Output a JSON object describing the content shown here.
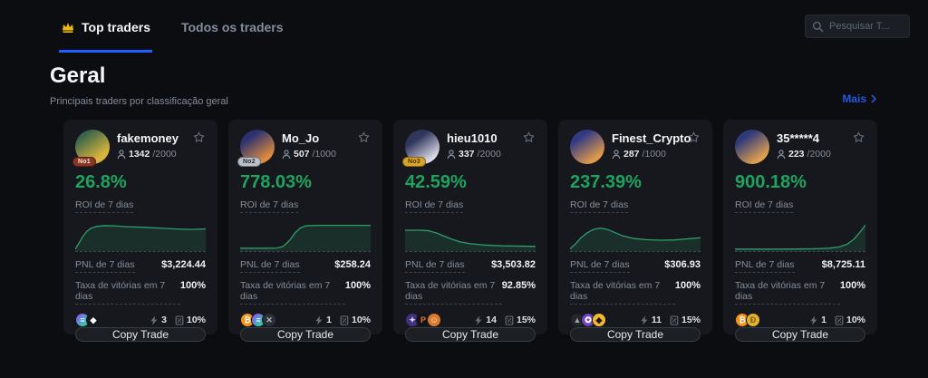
{
  "header": {
    "tabs": [
      {
        "label": "Top traders",
        "active": true
      },
      {
        "label": "Todos os traders",
        "active": false
      }
    ],
    "search_placeholder": "Pesquisar T..."
  },
  "section": {
    "title": "Geral",
    "subtitle": "Principais traders por classificação geral",
    "more_label": "Mais"
  },
  "labels": {
    "roi": "ROI de 7 dias",
    "pnl": "PNL de 7 dias",
    "win_rate": "Taxa de vitórias em 7 dias",
    "copy_button": "Copy Trade"
  },
  "colors": {
    "accent_blue": "#1f5eff",
    "link_blue": "#2458e5",
    "roi_green": "#1fa35f",
    "chart_line": "#2f9d6a",
    "crown_gold": "#f0b90b",
    "card_bg": "#16181d",
    "page_bg": "#0b0d10"
  },
  "traders": [
    {
      "name": "fakemoney",
      "followers": "1342",
      "capacity": "/2000",
      "rank_badge": "No1",
      "badge_bg": "#8a3526",
      "badge_fg": "#f5e7d4",
      "avatar_bg": "linear-gradient(145deg,#38654a 20%,#d8b33c 75%)",
      "roi": "26.8%",
      "pnl": "$3,224.44",
      "win_rate": "100%",
      "copiers": "3",
      "profit_share": "10%",
      "coins": [
        {
          "name": "sol-coin",
          "bg": "linear-gradient(135deg,#9945ff,#14f195)",
          "fg": "#ffffff",
          "glyph": "≡"
        },
        {
          "name": "eth-coin",
          "bg": "#17181b",
          "fg": "#ffffff",
          "glyph": "◆"
        }
      ]
    },
    {
      "name": "Mo_Jo",
      "followers": "507",
      "capacity": "/1000",
      "rank_badge": "No2",
      "badge_bg": "#b9c0c9",
      "badge_fg": "#2b2f36",
      "avatar_bg": "linear-gradient(145deg,#2c3270 25%,#e08b3d 80%)",
      "roi": "778.03%",
      "pnl": "$258.24",
      "win_rate": "100%",
      "copiers": "1",
      "profit_share": "10%",
      "coins": [
        {
          "name": "btc-coin",
          "bg": "#f7931a",
          "fg": "#ffffff",
          "glyph": "₿"
        },
        {
          "name": "sol-coin",
          "bg": "linear-gradient(135deg,#9945ff,#14f195)",
          "fg": "#ffffff",
          "glyph": "≡"
        },
        {
          "name": "x-token-coin",
          "bg": "#2b2f36",
          "fg": "#aeb6bf",
          "glyph": "✕"
        }
      ]
    },
    {
      "name": "hieu1010",
      "followers": "337",
      "capacity": "/2000",
      "rank_badge": "No3",
      "badge_bg": "#d9a62a",
      "badge_fg": "#4a3000",
      "avatar_bg": "linear-gradient(145deg,#30365c 30%,#e8e8f0 85%)",
      "roi": "42.59%",
      "pnl": "$3,503.82",
      "win_rate": "92.85%",
      "copiers": "14",
      "profit_share": "15%",
      "coins": [
        {
          "name": "purple-token-coin",
          "bg": "#43307e",
          "fg": "#d9d2f2",
          "glyph": "✦"
        },
        {
          "name": "pepe-token-coin",
          "bg": "#121316",
          "fg": "#e0762c",
          "glyph": "P"
        },
        {
          "name": "trump-token-coin",
          "bg": "#d97b2f",
          "fg": "#ffe9c9",
          "glyph": "☺"
        }
      ]
    },
    {
      "name": "Finest_Crypto",
      "followers": "287",
      "capacity": "/1000",
      "rank_badge": null,
      "badge_bg": null,
      "badge_fg": null,
      "avatar_bg": "linear-gradient(145deg,#323a85 25%,#e09a4a 80%)",
      "roi": "237.39%",
      "pnl": "$306.93",
      "win_rate": "100%",
      "copiers": "11",
      "profit_share": "15%",
      "coins": [
        {
          "name": "dark-token-coin",
          "bg": "#23262d",
          "fg": "#9aa3ad",
          "glyph": "▲"
        },
        {
          "name": "purple-token-coin",
          "bg": "#6f42c1",
          "fg": "#ffffff",
          "glyph": "✪"
        },
        {
          "name": "bnb-coin",
          "bg": "#f3ba2f",
          "fg": "#1a1a1a",
          "glyph": "◆"
        }
      ]
    },
    {
      "name": "35*****4",
      "followers": "223",
      "capacity": "/2000",
      "rank_badge": null,
      "badge_bg": null,
      "badge_fg": null,
      "avatar_bg": "linear-gradient(145deg,#2f3a7a 25%,#e0a050 80%)",
      "roi": "900.18%",
      "pnl": "$8,725.11",
      "win_rate": "100%",
      "copiers": "1",
      "profit_share": "10%",
      "coins": [
        {
          "name": "btc-coin",
          "bg": "#f7931a",
          "fg": "#ffffff",
          "glyph": "₿"
        },
        {
          "name": "doge-coin",
          "bg": "#e1b22f",
          "fg": "#7a5a12",
          "glyph": "Ð"
        }
      ]
    }
  ],
  "chart_data": [
    {
      "type": "area",
      "name": "fakemoney ROI de 7 dias",
      "grid": false,
      "legend": false,
      "x_range": [
        0,
        100
      ],
      "y_range": [
        0,
        100
      ],
      "y_unit": "normalized ROI trend",
      "line_color": "#2f9d6a",
      "fill_color": "rgba(47,157,106,0.18)",
      "baseline": "dashed",
      "points": [
        [
          0,
          2
        ],
        [
          3,
          25
        ],
        [
          6,
          50
        ],
        [
          9,
          68
        ],
        [
          12,
          79
        ],
        [
          16,
          86
        ],
        [
          22,
          89
        ],
        [
          30,
          88
        ],
        [
          40,
          85
        ],
        [
          52,
          83
        ],
        [
          64,
          80
        ],
        [
          76,
          77
        ],
        [
          88,
          75
        ],
        [
          100,
          77
        ]
      ]
    },
    {
      "type": "area",
      "name": "Mo_Jo ROI de 7 dias",
      "grid": false,
      "legend": false,
      "x_range": [
        0,
        100
      ],
      "y_range": [
        0,
        100
      ],
      "y_unit": "normalized ROI trend",
      "line_color": "#2f9d6a",
      "fill_color": "rgba(47,157,106,0.18)",
      "baseline": "dashed",
      "points": [
        [
          0,
          5
        ],
        [
          20,
          5
        ],
        [
          28,
          6
        ],
        [
          33,
          12
        ],
        [
          38,
          35
        ],
        [
          42,
          62
        ],
        [
          46,
          80
        ],
        [
          50,
          88
        ],
        [
          58,
          90
        ],
        [
          75,
          90
        ],
        [
          100,
          90
        ]
      ]
    },
    {
      "type": "area",
      "name": "hieu1010 ROI de 7 dias",
      "grid": false,
      "legend": false,
      "x_range": [
        0,
        100
      ],
      "y_range": [
        0,
        100
      ],
      "y_unit": "normalized ROI trend",
      "line_color": "#2f9d6a",
      "fill_color": "rgba(47,157,106,0.18)",
      "baseline": "dashed",
      "points": [
        [
          0,
          72
        ],
        [
          12,
          72
        ],
        [
          18,
          70
        ],
        [
          24,
          62
        ],
        [
          30,
          50
        ],
        [
          36,
          38
        ],
        [
          42,
          29
        ],
        [
          50,
          22
        ],
        [
          60,
          17
        ],
        [
          75,
          14
        ],
        [
          100,
          12
        ]
      ]
    },
    {
      "type": "area",
      "name": "Finest_Crypto ROI de 7 dias",
      "grid": false,
      "legend": false,
      "x_range": [
        0,
        100
      ],
      "y_range": [
        0,
        100
      ],
      "y_unit": "normalized ROI trend",
      "line_color": "#2f9d6a",
      "fill_color": "rgba(47,157,106,0.18)",
      "baseline": "dashed",
      "points": [
        [
          0,
          3
        ],
        [
          4,
          20
        ],
        [
          8,
          42
        ],
        [
          13,
          62
        ],
        [
          18,
          75
        ],
        [
          23,
          80
        ],
        [
          28,
          76
        ],
        [
          34,
          64
        ],
        [
          40,
          52
        ],
        [
          48,
          42
        ],
        [
          58,
          37
        ],
        [
          70,
          35
        ],
        [
          80,
          36
        ],
        [
          90,
          40
        ],
        [
          100,
          44
        ]
      ]
    },
    {
      "type": "area",
      "name": "35*****4 ROI de 7 dias",
      "grid": false,
      "legend": false,
      "x_range": [
        0,
        100
      ],
      "y_range": [
        0,
        100
      ],
      "y_unit": "normalized ROI trend",
      "line_color": "#2f9d6a",
      "fill_color": "rgba(47,157,106,0.18)",
      "baseline": "dashed",
      "points": [
        [
          0,
          2
        ],
        [
          40,
          2
        ],
        [
          60,
          3
        ],
        [
          72,
          5
        ],
        [
          80,
          10
        ],
        [
          86,
          20
        ],
        [
          91,
          38
        ],
        [
          95,
          60
        ],
        [
          98,
          78
        ],
        [
          100,
          92
        ]
      ]
    }
  ]
}
